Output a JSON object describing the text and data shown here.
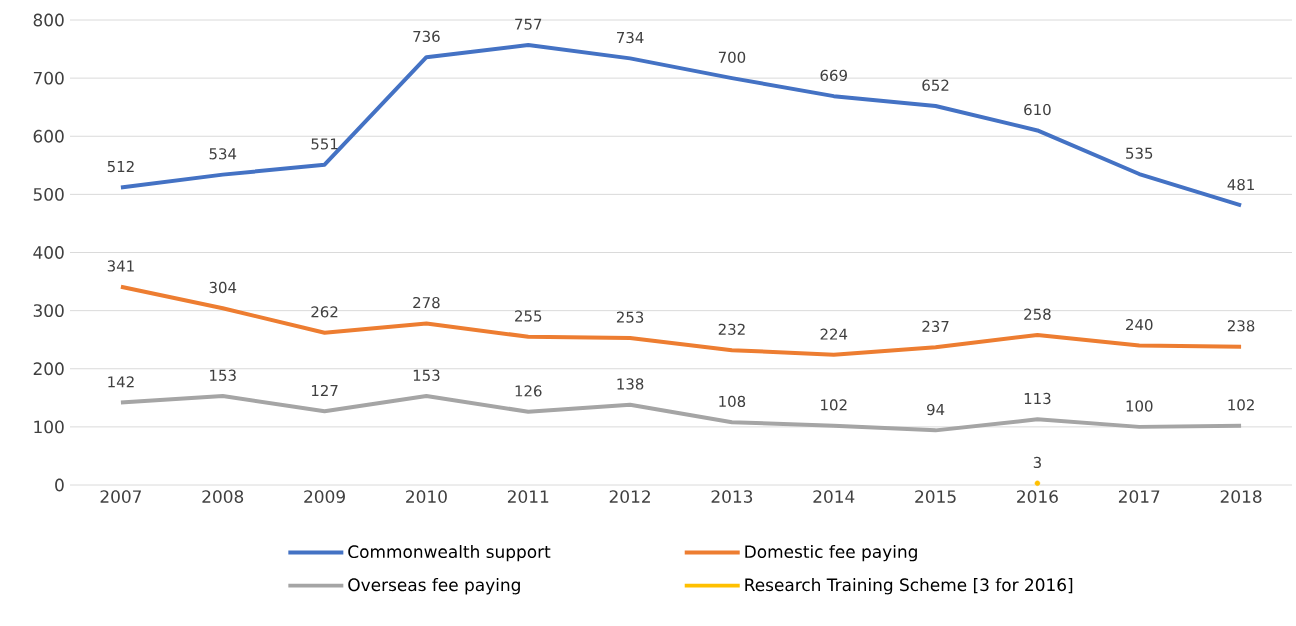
{
  "chart_data": {
    "type": "line",
    "categories": [
      "2007",
      "2008",
      "2009",
      "2010",
      "2011",
      "2012",
      "2013",
      "2014",
      "2015",
      "2016",
      "2017",
      "2018"
    ],
    "series": [
      {
        "name": "Commonwealth support",
        "color": "#4472c4",
        "values": [
          512,
          534,
          551,
          736,
          757,
          734,
          700,
          669,
          652,
          610,
          535,
          481
        ]
      },
      {
        "name": "Domestic fee paying",
        "color": "#ed7d31",
        "values": [
          341,
          304,
          262,
          278,
          255,
          253,
          232,
          224,
          237,
          258,
          240,
          238
        ]
      },
      {
        "name": "Overseas fee paying",
        "color": "#a5a5a5",
        "values": [
          142,
          153,
          127,
          153,
          126,
          138,
          108,
          102,
          94,
          113,
          100,
          102
        ]
      },
      {
        "name": "Research Training Scheme [3 for 2016]",
        "color": "#ffc000",
        "values": [
          null,
          null,
          null,
          null,
          null,
          null,
          null,
          null,
          null,
          3,
          null,
          null
        ]
      }
    ],
    "ylim": [
      0,
      800
    ],
    "yticks": [
      0,
      100,
      200,
      300,
      400,
      500,
      600,
      700,
      800
    ],
    "grid": "y",
    "legend": "bottom",
    "data_labels": true,
    "marker": "none",
    "line_style": "solid"
  }
}
